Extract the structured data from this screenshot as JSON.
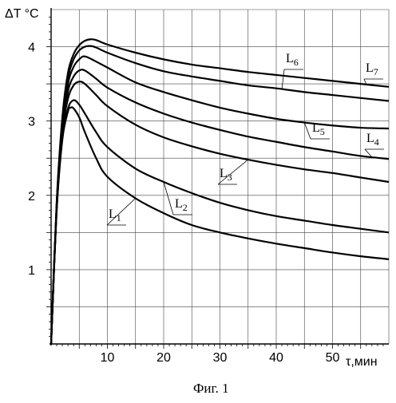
{
  "chart_data": {
    "type": "line",
    "title": "",
    "caption": "Фиг. 1",
    "ylabel": "ΔT °C",
    "xlabel": "τ,мин",
    "xlim": [
      0,
      60
    ],
    "ylim": [
      0,
      4.5
    ],
    "x_ticks": [
      10,
      20,
      30,
      40,
      50
    ],
    "y_ticks": [
      1,
      2,
      3,
      4
    ],
    "grid": true,
    "series": [
      {
        "name": "L1",
        "x": [
          0,
          1,
          2,
          3,
          3.5,
          4,
          5,
          6,
          8,
          10,
          15,
          20,
          25,
          30,
          35,
          40,
          45,
          50,
          55,
          60
        ],
        "values": [
          0,
          1.8,
          2.75,
          3.13,
          3.18,
          3.17,
          3.05,
          2.85,
          2.5,
          2.25,
          1.96,
          1.76,
          1.6,
          1.5,
          1.42,
          1.35,
          1.29,
          1.23,
          1.18,
          1.14
        ]
      },
      {
        "name": "L2",
        "x": [
          0,
          1,
          2,
          3,
          4,
          5,
          6,
          8,
          10,
          15,
          20,
          25,
          30,
          35,
          40,
          45,
          50,
          55,
          60
        ],
        "values": [
          0,
          1.82,
          2.78,
          3.17,
          3.28,
          3.22,
          3.1,
          2.85,
          2.65,
          2.36,
          2.18,
          2.03,
          1.9,
          1.8,
          1.72,
          1.66,
          1.6,
          1.55,
          1.5
        ]
      },
      {
        "name": "L3",
        "x": [
          0,
          1,
          2,
          3,
          4,
          5,
          6,
          8,
          10,
          15,
          20,
          25,
          30,
          35,
          40,
          45,
          50,
          55,
          60
        ],
        "values": [
          0,
          1.85,
          2.85,
          3.3,
          3.48,
          3.53,
          3.5,
          3.35,
          3.2,
          2.95,
          2.78,
          2.66,
          2.56,
          2.48,
          2.41,
          2.35,
          2.3,
          2.24,
          2.18
        ]
      },
      {
        "name": "L4",
        "x": [
          0,
          1,
          2,
          3,
          4,
          5,
          6,
          8,
          10,
          15,
          20,
          25,
          30,
          35,
          40,
          45,
          50,
          55,
          60
        ],
        "values": [
          0,
          1.87,
          2.9,
          3.4,
          3.6,
          3.68,
          3.68,
          3.57,
          3.45,
          3.25,
          3.1,
          2.98,
          2.88,
          2.79,
          2.72,
          2.65,
          2.59,
          2.53,
          2.49
        ]
      },
      {
        "name": "L5",
        "x": [
          0,
          1,
          2,
          3,
          4,
          5,
          6,
          8,
          10,
          15,
          20,
          25,
          30,
          35,
          40,
          45,
          50,
          55,
          60
        ],
        "values": [
          0,
          1.88,
          2.95,
          3.5,
          3.73,
          3.83,
          3.87,
          3.8,
          3.72,
          3.52,
          3.39,
          3.28,
          3.18,
          3.1,
          3.03,
          2.98,
          2.94,
          2.91,
          2.9
        ]
      },
      {
        "name": "L6",
        "x": [
          0,
          1,
          2,
          3,
          4,
          5,
          6,
          7,
          8,
          10,
          15,
          20,
          25,
          30,
          35,
          40,
          45,
          50,
          55,
          60
        ],
        "values": [
          0,
          1.9,
          3.0,
          3.58,
          3.83,
          3.95,
          4.0,
          4.01,
          3.99,
          3.92,
          3.78,
          3.67,
          3.6,
          3.54,
          3.48,
          3.44,
          3.39,
          3.35,
          3.31,
          3.27
        ]
      },
      {
        "name": "L7",
        "x": [
          0,
          1,
          2,
          3,
          4,
          5,
          6,
          7,
          8,
          10,
          15,
          20,
          25,
          30,
          35,
          40,
          45,
          50,
          55,
          60
        ],
        "values": [
          0,
          1.92,
          3.05,
          3.65,
          3.9,
          4.02,
          4.08,
          4.1,
          4.09,
          4.03,
          3.92,
          3.83,
          3.76,
          3.71,
          3.66,
          3.62,
          3.58,
          3.54,
          3.5,
          3.46
        ]
      }
    ],
    "curve_labels": [
      {
        "series": "L1",
        "base": "L",
        "sub": "1"
      },
      {
        "series": "L2",
        "base": "L",
        "sub": "2"
      },
      {
        "series": "L3",
        "base": "L",
        "sub": "3"
      },
      {
        "series": "L4",
        "base": "L",
        "sub": "4"
      },
      {
        "series": "L5",
        "base": "L",
        "sub": "5"
      },
      {
        "series": "L6",
        "base": "L",
        "sub": "6"
      },
      {
        "series": "L7",
        "base": "L",
        "sub": "7"
      }
    ]
  }
}
